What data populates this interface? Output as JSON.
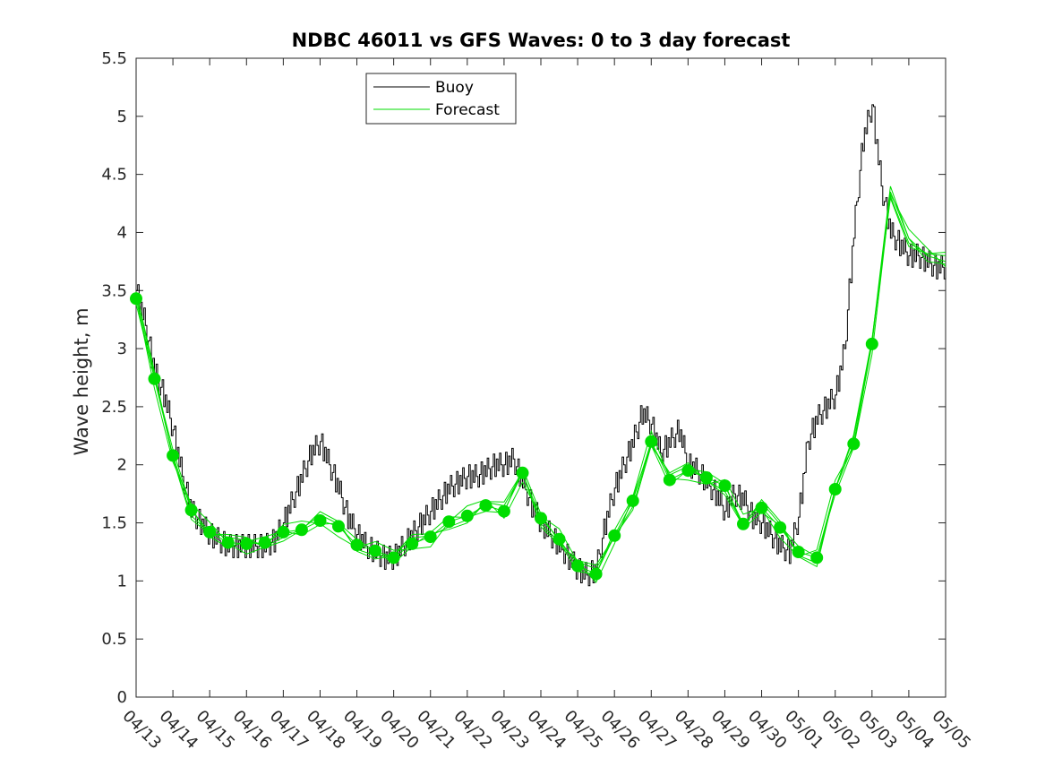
{
  "chart_data": {
    "type": "line",
    "title": "NDBC 46011 vs GFS Waves: 0 to 3 day forecast",
    "xlabel": "",
    "ylabel": "Wave height, m",
    "ylim": [
      0,
      5.5
    ],
    "xlim": [
      "04/13",
      "05/05"
    ],
    "yticks": [
      "0",
      "0.5",
      "1",
      "1.5",
      "2",
      "2.5",
      "3",
      "3.5",
      "4",
      "4.5",
      "5",
      "5.5"
    ],
    "xticks": [
      "04/13",
      "04/14",
      "04/15",
      "04/16",
      "04/17",
      "04/18",
      "04/19",
      "04/20",
      "04/21",
      "04/22",
      "04/23",
      "04/24",
      "04/25",
      "04/26",
      "04/27",
      "04/28",
      "04/29",
      "04/30",
      "05/01",
      "05/02",
      "05/03",
      "05/04",
      "05/05"
    ],
    "grid": false,
    "legend_position": "top-center",
    "series": [
      {
        "name": "Buoy",
        "color": "#000000",
        "x_day": [
          0,
          0.25,
          0.5,
          0.75,
          1,
          1.25,
          1.5,
          1.75,
          2,
          2.25,
          2.5,
          2.75,
          3,
          3.25,
          3.5,
          3.75,
          4,
          4.25,
          4.5,
          4.75,
          5,
          5.25,
          5.5,
          5.75,
          6,
          6.25,
          6.5,
          6.75,
          7,
          7.25,
          7.5,
          7.75,
          8,
          8.25,
          8.5,
          8.75,
          9,
          9.25,
          9.5,
          9.75,
          10,
          10.25,
          10.5,
          10.75,
          11,
          11.25,
          11.5,
          11.75,
          12,
          12.25,
          12.5,
          12.75,
          13,
          13.25,
          13.5,
          13.75,
          14,
          14.25,
          14.5,
          14.75,
          15,
          15.25,
          15.5,
          15.75,
          16,
          16.25,
          16.5,
          16.75,
          17,
          17.25,
          17.5,
          17.75,
          18,
          18.25,
          18.5,
          18.75,
          19,
          19.25,
          19.5,
          19.75,
          20,
          20.25,
          20.5,
          20.75,
          21,
          21.25,
          21.5,
          21.75,
          22
        ],
        "values": [
          3.5,
          3.2,
          2.8,
          2.6,
          2.3,
          1.9,
          1.6,
          1.5,
          1.4,
          1.35,
          1.3,
          1.3,
          1.3,
          1.3,
          1.3,
          1.35,
          1.5,
          1.7,
          1.9,
          2.1,
          2.2,
          2.0,
          1.8,
          1.55,
          1.4,
          1.3,
          1.25,
          1.2,
          1.2,
          1.3,
          1.4,
          1.5,
          1.6,
          1.7,
          1.8,
          1.85,
          1.9,
          1.9,
          1.95,
          2.0,
          2.0,
          2.05,
          1.85,
          1.65,
          1.5,
          1.4,
          1.3,
          1.2,
          1.1,
          1.05,
          1.1,
          1.5,
          1.8,
          2.0,
          2.2,
          2.45,
          2.35,
          2.1,
          2.2,
          2.3,
          2.0,
          1.95,
          1.85,
          1.75,
          1.6,
          1.75,
          1.7,
          1.55,
          1.5,
          1.4,
          1.3,
          1.25,
          1.55,
          2.2,
          2.4,
          2.5,
          2.6,
          3.0,
          4.0,
          4.8,
          5.1,
          4.4,
          4.0,
          3.9,
          3.8,
          3.8,
          3.75,
          3.7,
          3.7
        ]
      },
      {
        "name": "Forecast",
        "color": "#00dd00",
        "x_day": [
          0,
          0.5,
          1,
          1.5,
          2,
          2.5,
          3,
          3.5,
          4,
          4.5,
          5,
          5.5,
          6,
          6.5,
          7,
          7.5,
          8,
          8.5,
          9,
          9.5,
          10,
          10.5,
          11,
          11.5,
          12,
          12.5,
          13,
          13.5,
          14,
          14.5,
          15,
          15.5,
          16,
          16.5,
          17,
          17.5,
          18,
          18.5,
          19,
          19.5,
          20,
          20.5,
          21,
          21.5,
          22
        ],
        "values": [
          3.43,
          2.74,
          2.08,
          1.61,
          1.42,
          1.33,
          1.32,
          1.33,
          1.42,
          1.44,
          1.52,
          1.47,
          1.31,
          1.26,
          1.2,
          1.32,
          1.38,
          1.51,
          1.56,
          1.65,
          1.6,
          1.93,
          1.54,
          1.36,
          1.13,
          1.06,
          1.39,
          1.69,
          2.2,
          1.87,
          1.95,
          1.89,
          1.82,
          1.49,
          1.63,
          1.46,
          1.25,
          1.2,
          1.79,
          2.18,
          3.04,
          4.35,
          3.95,
          3.8,
          3.75
        ]
      }
    ],
    "markers": {
      "series": "Forecast",
      "x_day": [
        0,
        0.5,
        1,
        1.5,
        2,
        2.5,
        3,
        3.5,
        4,
        4.5,
        5,
        5.5,
        6,
        6.5,
        7,
        7.5,
        8,
        8.5,
        9,
        9.5,
        10,
        10.5,
        11,
        11.5,
        12,
        12.5,
        13,
        13.5,
        14,
        14.5,
        15,
        15.5,
        16,
        16.5,
        17,
        17.5,
        18,
        18.5,
        19,
        19.5,
        20
      ],
      "values": [
        3.43,
        2.74,
        2.08,
        1.61,
        1.42,
        1.33,
        1.32,
        1.33,
        1.42,
        1.44,
        1.52,
        1.47,
        1.31,
        1.26,
        1.2,
        1.32,
        1.38,
        1.51,
        1.56,
        1.65,
        1.6,
        1.93,
        1.54,
        1.36,
        1.13,
        1.06,
        1.39,
        1.69,
        2.2,
        1.87,
        1.95,
        1.89,
        1.82,
        1.49,
        1.63,
        1.46,
        1.25,
        1.2,
        1.79,
        2.18,
        3.04
      ]
    }
  }
}
